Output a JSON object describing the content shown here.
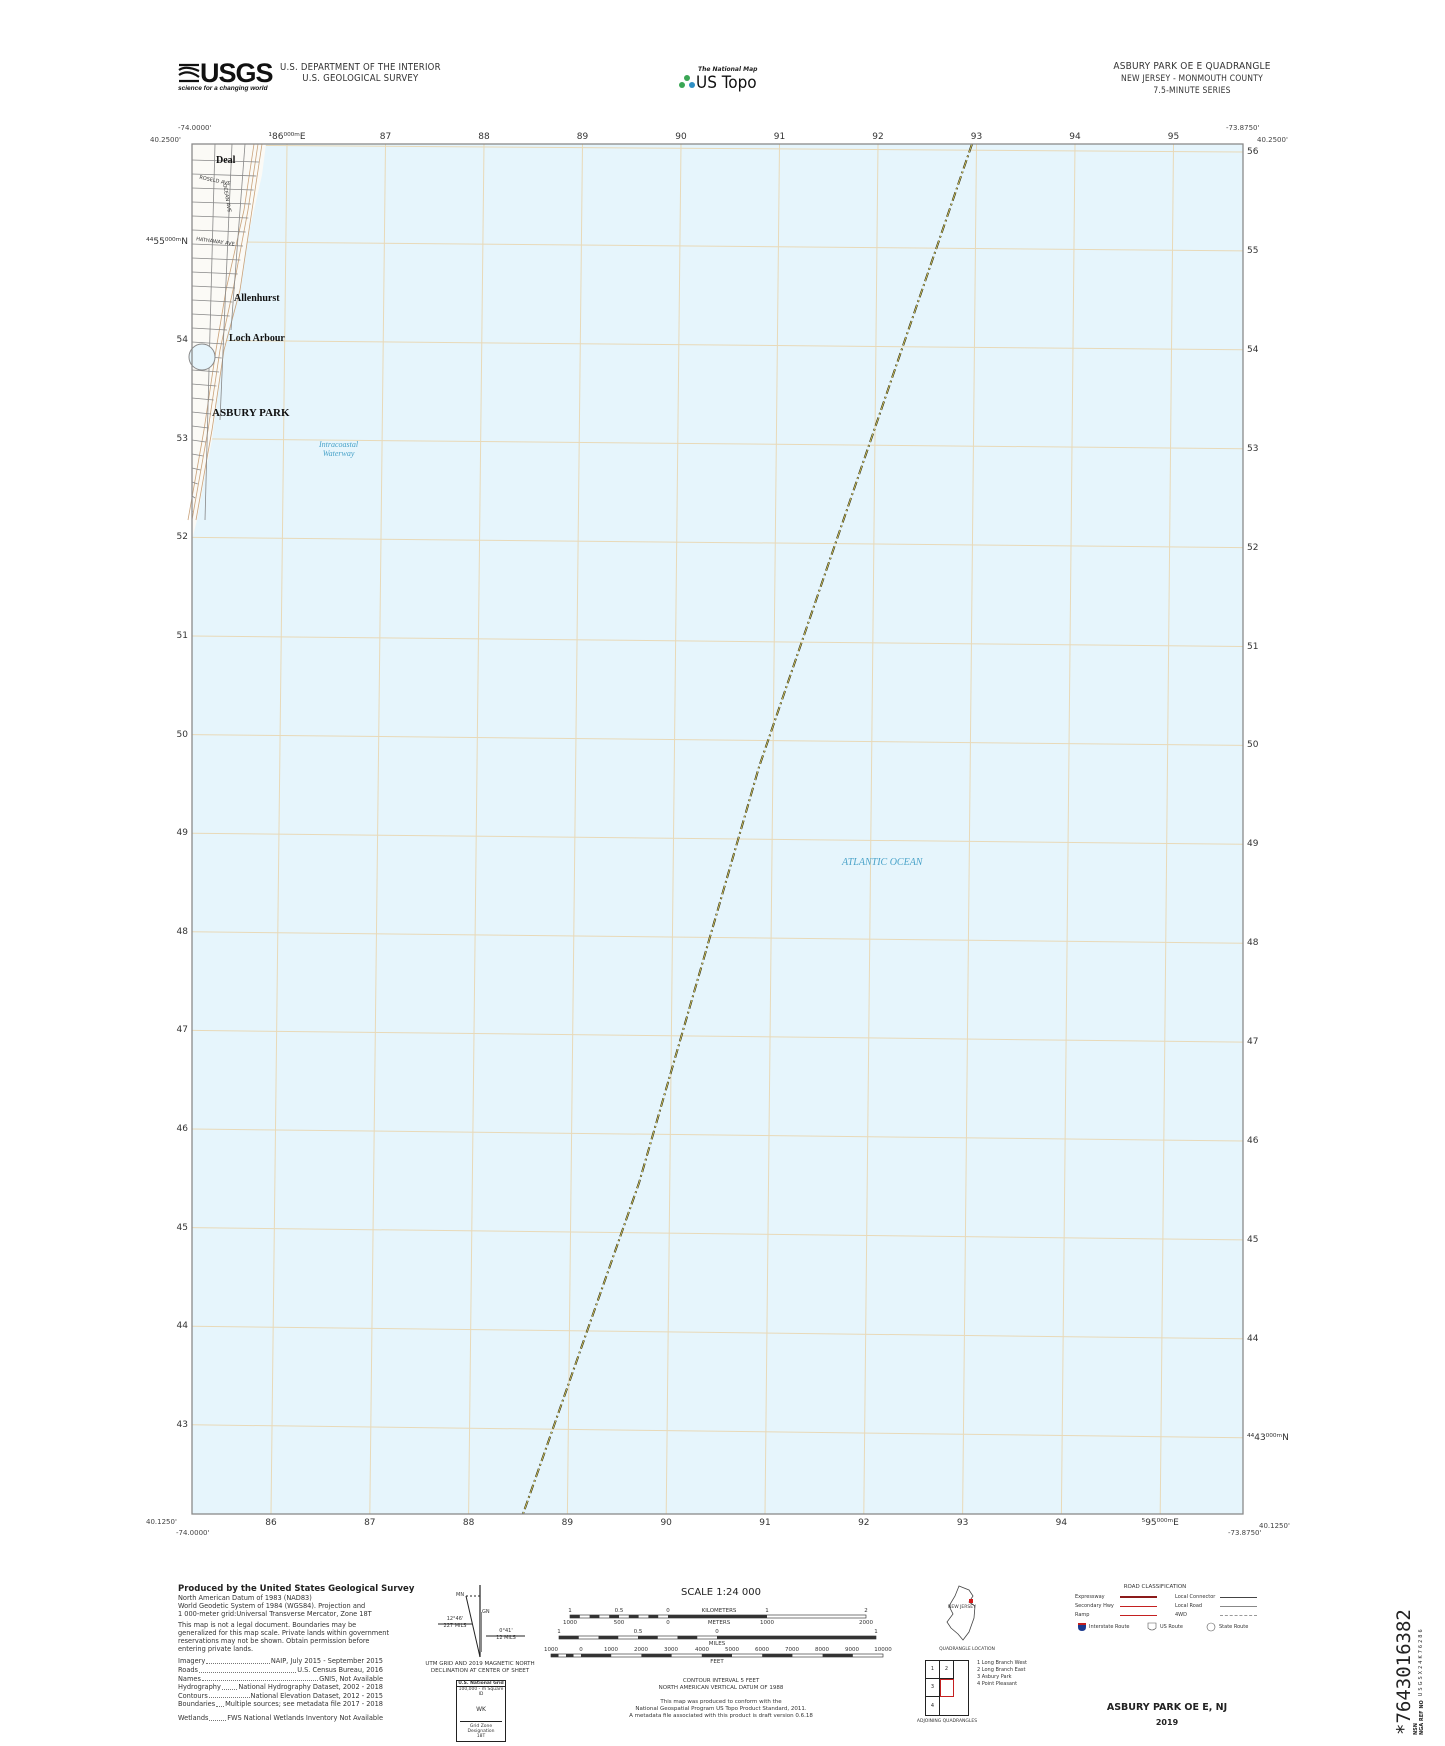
{
  "header": {
    "logo_text": "USGS",
    "logo_tagline": "science for a changing world",
    "agency_line1": "U.S. DEPARTMENT OF THE INTERIOR",
    "agency_line2": "U.S. GEOLOGICAL SURVEY",
    "national_map": "The National Map",
    "us_topo": "US Topo",
    "quad_title": "ASBURY PARK OE E QUADRANGLE",
    "state_county": "NEW JERSEY - MONMOUTH COUNTY",
    "series": "7.5-MINUTE SERIES"
  },
  "map": {
    "colors": {
      "water": "#e6f5fc",
      "grid": "#e8d9b8",
      "land": "#fbfaf6",
      "contour": "#c9a27a",
      "road": "#888888",
      "boundary": "#2b2b12"
    },
    "corners": {
      "top_left_lon": "-74.0000'",
      "top_left_lat": "40.2500'",
      "top_right_lon": "-73.8750'",
      "top_right_lat": "40.2500'",
      "bottom_left_lon": "-74.0000'",
      "bottom_left_lat": "40.1250'",
      "bottom_right_lon": "-73.8750'",
      "bottom_right_lat": "40.1250'"
    },
    "easting_top": [
      "¹86⁰⁰⁰ᵐE",
      "87",
      "88",
      "89",
      "90",
      "91",
      "92",
      "93",
      "94",
      "95"
    ],
    "easting_bottom": [
      "86",
      "87",
      "88",
      "89",
      "90",
      "91",
      "92",
      "93",
      "94",
      "⁵95⁰⁰⁰ᵐE"
    ],
    "northing_left": [
      "⁴⁴55⁰⁰⁰ᵐN",
      "54",
      "53",
      "52",
      "51",
      "50",
      "49",
      "48",
      "47",
      "46",
      "45",
      "44",
      "43"
    ],
    "northing_right": [
      "56",
      "55",
      "54",
      "53",
      "52",
      "51",
      "50",
      "49",
      "48",
      "47",
      "46",
      "45",
      "44",
      "⁴⁴43⁰⁰⁰ᵐN"
    ],
    "places": {
      "deal": "Deal",
      "allenhurst": "Allenhurst",
      "loch_arbour": "Loch Arbour",
      "asbury_park": "ASBURY PARK"
    },
    "water_labels": {
      "intracoastal_1": "Intracoastal",
      "intracoastal_2": "Waterway",
      "ocean": "ATLANTIC OCEAN"
    },
    "roads": {
      "roseld": "ROSELD AVE",
      "ocean": "OCEAN AVE",
      "hathaway": "HATHAWAY AVE"
    }
  },
  "footer": {
    "credits": {
      "title": "Produced by the United States Geological Survey",
      "lines": [
        "North American Datum of 1983 (NAD83)",
        "World Geodetic System of 1984 (WGS84). Projection and",
        "1 000-meter grid:Universal Transverse Mercator, Zone 18T"
      ],
      "disclaimer": [
        "This map is not a legal document. Boundaries may be",
        "generalized for this map scale. Private lands within government",
        "reservations may not be shown. Obtain permission before",
        "entering private lands."
      ],
      "sources": [
        {
          "label": "Imagery",
          "value": "NAIP, July 2015 - September 2015"
        },
        {
          "label": "Roads",
          "value": "U.S. Census Bureau, 2016"
        },
        {
          "label": "Names",
          "value": "GNIS, Not Available"
        },
        {
          "label": "Hydrography",
          "value": "National Hydrography Dataset, 2002 - 2018"
        },
        {
          "label": "Contours",
          "value": "National Elevation Dataset, 2012 - 2015"
        },
        {
          "label": "Boundaries",
          "value": "Multiple sources; see metadata file 2017 - 2018"
        }
      ],
      "wetlands": {
        "label": "Wetlands",
        "value": "FWS National Wetlands Inventory Not Available"
      }
    },
    "declination": {
      "mn": "MN",
      "gn": "GN",
      "left_angle": "12°46'",
      "left_mils": "227 MILS",
      "right_angle": "0°41'",
      "right_mils": "12 MILS",
      "caption1": "UTM GRID AND 2019 MAGNETIC NORTH",
      "caption2": "DECLINATION AT CENTER OF SHEET"
    },
    "usng": {
      "title": "U.S. National Grid",
      "subtitle": "100,000 - m Square ID",
      "square_id": "WK",
      "gzd_label": "Grid Zone Designation",
      "gzd": "18T"
    },
    "scale": {
      "title": "SCALE 1:24 000",
      "km_labels": [
        "1",
        "0.5",
        "0",
        "1",
        "2"
      ],
      "km_unit": "KILOMETERS",
      "m_labels": [
        "1000",
        "500",
        "0",
        "1000",
        "2000"
      ],
      "m_unit": "METERS",
      "mi_labels": [
        "1",
        "0.5",
        "0",
        "1"
      ],
      "mi_unit": "MILES",
      "ft_labels": [
        "1000",
        "0",
        "1000",
        "2000",
        "3000",
        "4000",
        "5000",
        "6000",
        "7000",
        "8000",
        "9000",
        "10000"
      ],
      "ft_unit": "FEET",
      "contour1": "CONTOUR INTERVAL 5 FEET",
      "contour2": "NORTH AMERICAN VERTICAL DATUM OF 1988",
      "standard1": "This map was produced to conform with the",
      "standard2": "National Geospatial Program US Topo Product Standard, 2011.",
      "standard3": "A metadata file associated with this product is draft version 0.6.18"
    },
    "location": {
      "state": "NEW JERSEY",
      "caption": "QUADRANGLE LOCATION"
    },
    "adjoining": {
      "cells": [
        "1",
        "2",
        "3",
        "4"
      ],
      "names": [
        "1 Long Branch West",
        "2 Long Branch East",
        "3 Asbury Park",
        "4 Point Pleasant"
      ],
      "caption": "ADJOINING QUADRANGLES"
    },
    "roads": {
      "title": "ROAD CLASSIFICATION",
      "expressway": "Expressway",
      "secondary": "Secondary Hwy",
      "ramp": "Ramp",
      "local_connector": "Local Connector",
      "local_road": "Local Road",
      "fourwd": "4WD",
      "interstate": "Interstate Route",
      "us_route": "US Route",
      "state_route": "State Route"
    },
    "sheet_title": "ASBURY PARK OE E,  NJ",
    "year": "2019",
    "barcode": {
      "number": "*7643016382",
      "nsn_label": "NSN",
      "nga_label": "NGA REF NO",
      "nga_ref": "USGSX24K76286"
    }
  }
}
